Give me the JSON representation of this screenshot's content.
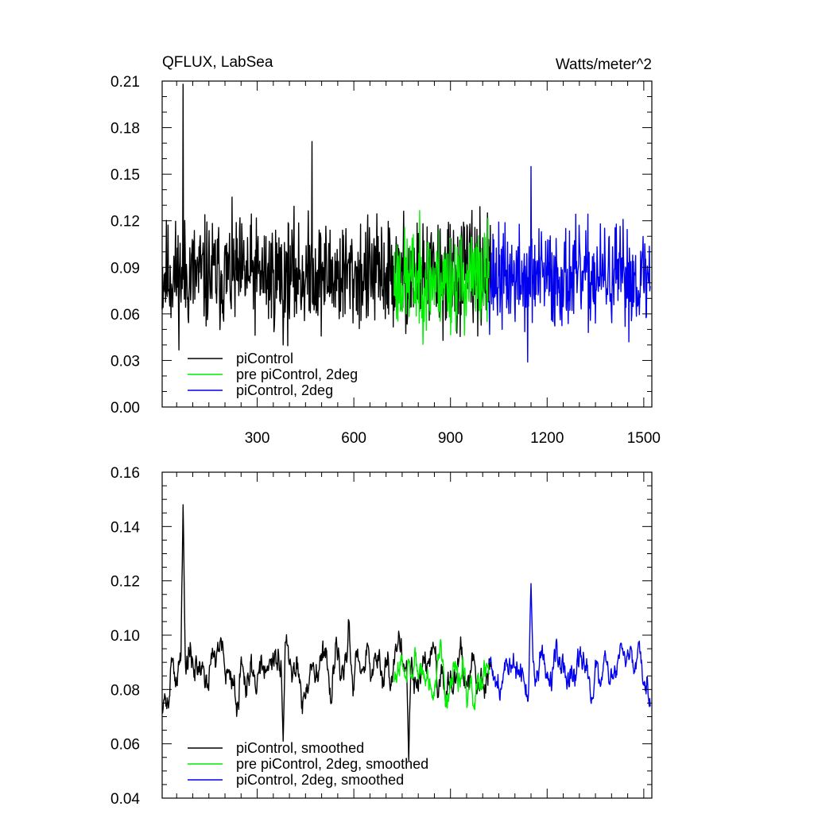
{
  "chart_data": [
    {
      "type": "line",
      "title": "QFLUX, LabSea",
      "units_label": "Watts/meter^2",
      "xlim": [
        5,
        1525
      ],
      "ylim": [
        0.0,
        0.21
      ],
      "y_ticks": [
        0.0,
        0.03,
        0.06,
        0.09,
        0.12,
        0.15,
        0.18,
        0.21
      ],
      "y_tick_labels": [
        "0.00",
        "0.03",
        "0.06",
        "0.09",
        "0.12",
        "0.15",
        "0.18",
        "0.21"
      ],
      "y_minor_step": 0.01,
      "x_ticks": [
        300,
        600,
        900,
        1200,
        1500
      ],
      "x_tick_labels": [
        "300",
        "600",
        "900",
        "1200",
        "1500"
      ],
      "x_minor_step": 50,
      "legend": [
        {
          "label": "piControl",
          "color": "#000000"
        },
        {
          "label": "pre piControl, 2deg",
          "color": "#00ee00"
        },
        {
          "label": "piControl, 2deg",
          "color": "#0000ee"
        }
      ],
      "series": [
        {
          "name": "piControl",
          "color": "#000000",
          "x_start": 5,
          "x_end": 1025,
          "mean": 0.085,
          "noise": 0.022,
          "seed": 11
        },
        {
          "name": "pre piControl, 2deg",
          "color": "#00ee00",
          "x_start": 725,
          "x_end": 1020,
          "mean": 0.082,
          "noise": 0.02,
          "seed": 23
        },
        {
          "name": "piControl, 2deg",
          "color": "#0000ee",
          "x_start": 1020,
          "x_end": 1520,
          "mean": 0.083,
          "noise": 0.02,
          "seed": 37
        }
      ],
      "annotations": [
        {
          "x": 70,
          "y": 0.208
        },
        {
          "x": 470,
          "y": 0.171
        },
        {
          "x": 1150,
          "y": 0.155
        },
        {
          "x": 380,
          "y": 0.04
        },
        {
          "x": 1140,
          "y": 0.029
        }
      ]
    },
    {
      "type": "line",
      "title": "",
      "units_label": "",
      "xlim": [
        5,
        1525
      ],
      "ylim": [
        0.04,
        0.16
      ],
      "y_ticks": [
        0.04,
        0.06,
        0.08,
        0.1,
        0.12,
        0.14,
        0.16
      ],
      "y_tick_labels": [
        "0.04",
        "0.06",
        "0.08",
        "0.10",
        "0.12",
        "0.14",
        "0.16"
      ],
      "y_minor_step": 0.005,
      "x_ticks": [
        300,
        600,
        900,
        1200,
        1500
      ],
      "x_tick_labels": [],
      "x_minor_step": 50,
      "legend": [
        {
          "label": "piControl, smoothed",
          "color": "#000000"
        },
        {
          "label": "pre piControl, 2deg, smoothed",
          "color": "#00ee00"
        },
        {
          "label": "piControl, 2deg, smoothed",
          "color": "#0000ee"
        }
      ],
      "series": [
        {
          "name": "piControl, smoothed",
          "color": "#000000",
          "x_start": 5,
          "x_end": 1025,
          "mean": 0.088,
          "noise": 0.009,
          "seed": 53
        },
        {
          "name": "pre piControl, 2deg, smoothed",
          "color": "#00ee00",
          "x_start": 725,
          "x_end": 1020,
          "mean": 0.083,
          "noise": 0.009,
          "seed": 61
        },
        {
          "name": "piControl, 2deg, smoothed",
          "color": "#0000ee",
          "x_start": 1020,
          "x_end": 1520,
          "mean": 0.086,
          "noise": 0.008,
          "seed": 71
        }
      ],
      "annotations": [
        {
          "x": 70,
          "y": 0.148
        },
        {
          "x": 1150,
          "y": 0.119
        },
        {
          "x": 380,
          "y": 0.061
        },
        {
          "x": 770,
          "y": 0.054
        }
      ]
    }
  ]
}
